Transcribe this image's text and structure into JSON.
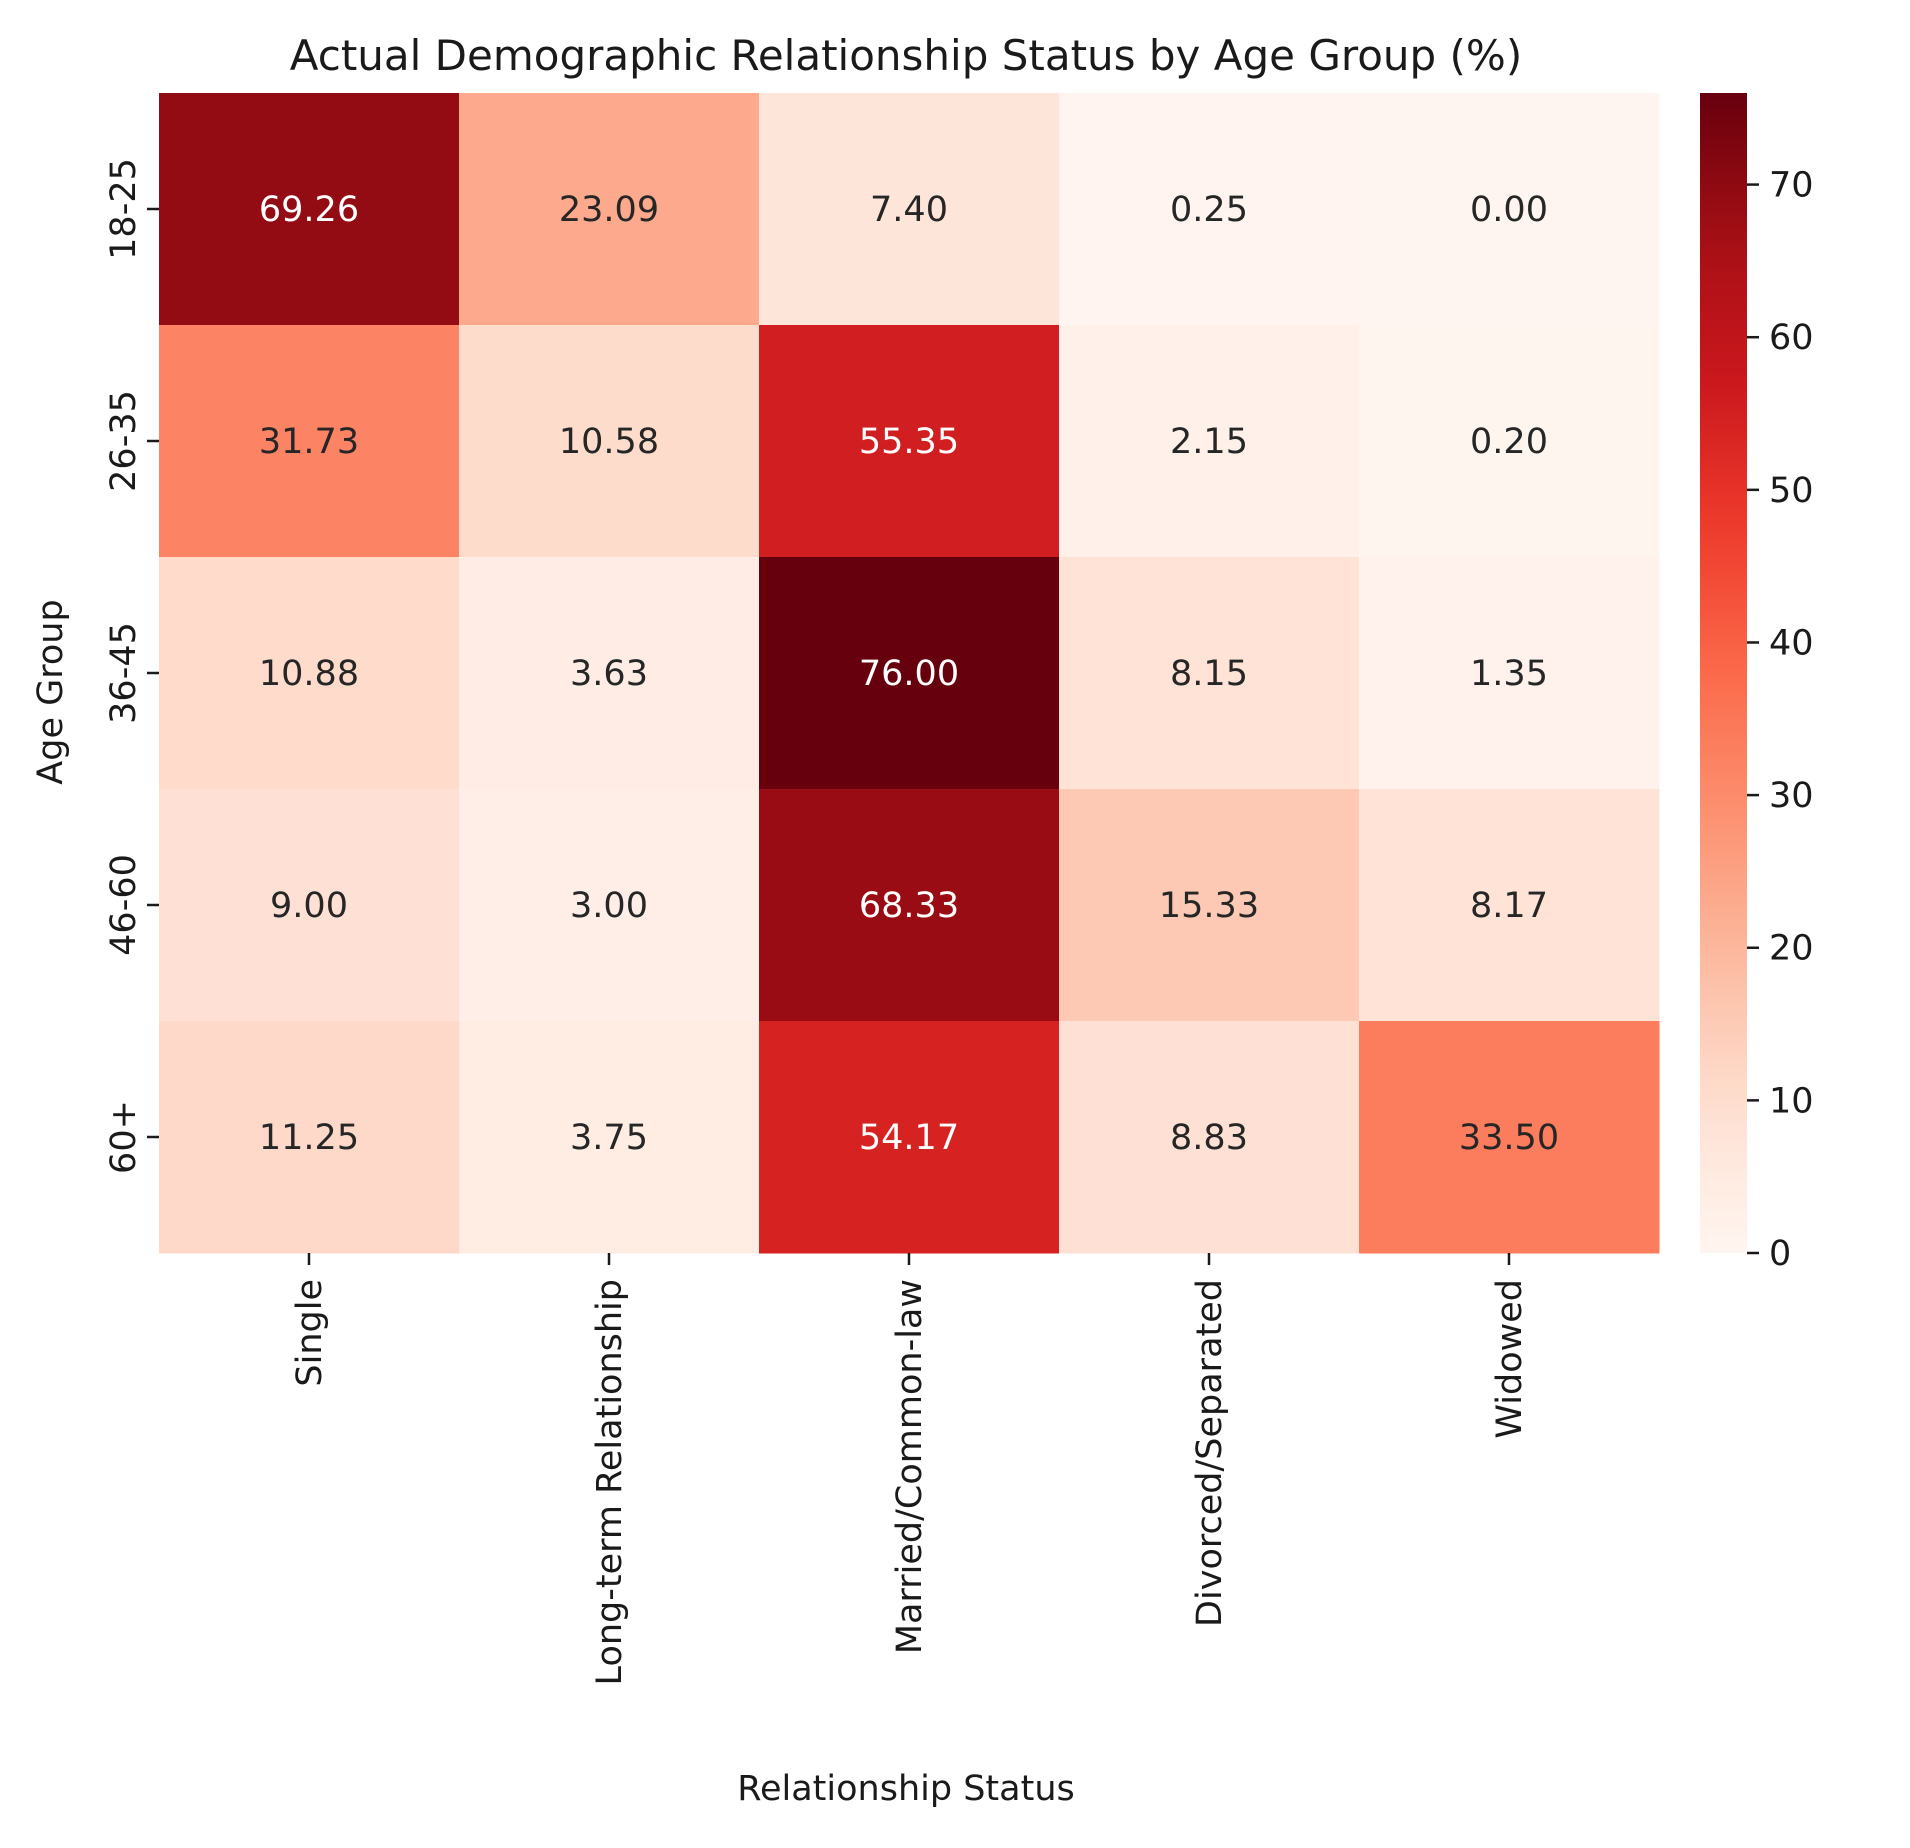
{
  "chart_data": {
    "type": "heatmap",
    "title": "Actual Demographic Relationship Status by Age Group (%)",
    "xlabel": "Relationship Status",
    "ylabel": "Age Group",
    "x_categories": [
      "Single",
      "Long-term Relationship",
      "Married/Common-law",
      "Divorced/Separated",
      "Widowed"
    ],
    "y_categories": [
      "18-25",
      "26-35",
      "36-45",
      "46-60",
      "60+"
    ],
    "values": [
      [
        69.26,
        23.09,
        7.4,
        0.25,
        0.0
      ],
      [
        31.73,
        10.58,
        55.35,
        2.15,
        0.2
      ],
      [
        10.88,
        3.63,
        76.0,
        8.15,
        1.35
      ],
      [
        9.0,
        3.0,
        68.33,
        15.33,
        8.17
      ],
      [
        11.25,
        3.75,
        54.17,
        8.83,
        33.5
      ]
    ],
    "value_format": "2 decimals",
    "colormap": "Reds",
    "colorbar": {
      "min": 0,
      "max": 76.0,
      "ticks": [
        0,
        10,
        20,
        30,
        40,
        50,
        60,
        70
      ]
    },
    "annotation_colors": {
      "dark_text": "#262626",
      "light_text": "#ffffff"
    }
  }
}
